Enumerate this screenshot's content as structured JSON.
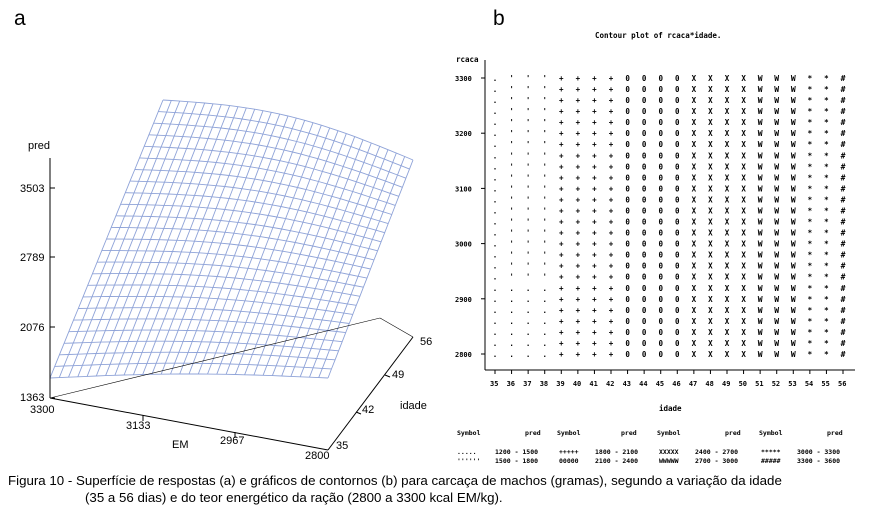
{
  "panel_a": {
    "letter": "a",
    "zlabel": "pred",
    "z_ticks": [
      "3503",
      "2789",
      "2076",
      "1363"
    ],
    "x_label": "EM",
    "x_ticks": [
      "3300",
      "3133",
      "2967",
      "2800"
    ],
    "y_label": "idade",
    "y_ticks": [
      "35",
      "42",
      "49",
      "56"
    ],
    "surface_color": "#8fa3d8"
  },
  "panel_b": {
    "letter": "b",
    "title": "Contour plot of rcaca*idade.",
    "ylabel": "rcaca",
    "xlabel": "idade",
    "y_ticks": [
      "3300",
      "3200",
      "3100",
      "3000",
      "2900",
      "2800"
    ],
    "x_ticks": [
      "35",
      "36",
      "37",
      "38",
      "39",
      "40",
      "41",
      "42",
      "43",
      "44",
      "45",
      "46",
      "47",
      "48",
      "49",
      "50",
      "51",
      "52",
      "53",
      "54",
      "55",
      "56"
    ],
    "legend": {
      "headers": [
        "Symbol",
        "pred",
        "Symbol",
        "pred",
        "Symbol",
        "pred",
        "Symbol",
        "pred"
      ],
      "entries": [
        {
          "symbol": ".....",
          "range": "1200 - 1500"
        },
        {
          "symbol": "''''''",
          "range": "1500 - 1800"
        },
        {
          "symbol": "+++++",
          "range": "1800 - 2100"
        },
        {
          "symbol": "00000",
          "range": "2100 - 2400"
        },
        {
          "symbol": "XXXXX",
          "range": "2400 - 2700"
        },
        {
          "symbol": "WWWWW",
          "range": "2700 - 3000"
        },
        {
          "symbol": "*****",
          "range": "3000 - 3300"
        },
        {
          "symbol": "#####",
          "range": "3300 - 3600"
        }
      ]
    }
  },
  "caption": {
    "line1": "Figura 10 - Superfície de respostas (a) e gráficos de contornos (b) para carcaça de machos (gramas), segundo a variação da idade",
    "line2": "(35 a 56 dias) e do teor energético da ração (2800 a 3300 kcal EM/kg)."
  },
  "chart_data": [
    {
      "type": "surface",
      "zlabel": "pred",
      "xlabel": "EM",
      "ylabel": "idade",
      "x_range": [
        2800,
        3300
      ],
      "y_range": [
        35,
        56
      ],
      "z_range": [
        1363,
        3503
      ],
      "z_ticks": [
        1363,
        2076,
        2789,
        3503
      ]
    },
    {
      "type": "contour",
      "title": "Contour plot of rcaca*idade.",
      "xlabel": "idade",
      "ylabel": "rcaca",
      "x_range": [
        35,
        56
      ],
      "y_range": [
        2800,
        3300
      ],
      "levels": [
        "1200 - 1500",
        "1500 - 1800",
        "1800 - 2100",
        "2100 - 2400",
        "2400 - 2700",
        "2700 - 3000",
        "3000 - 3300",
        "3300 - 3600"
      ]
    }
  ]
}
